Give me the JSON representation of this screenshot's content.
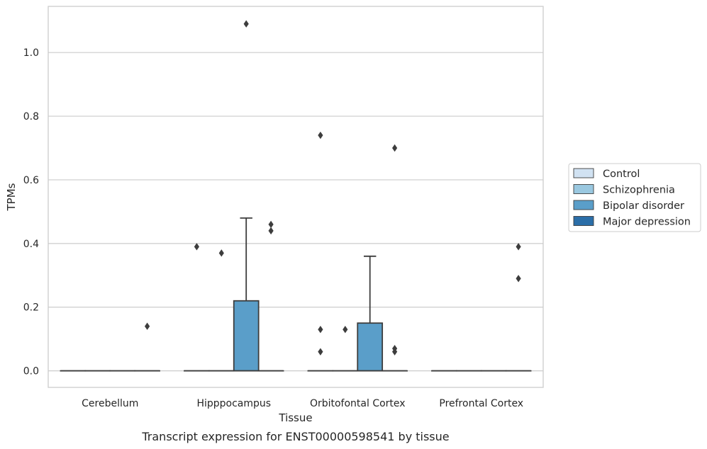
{
  "chart_data": {
    "type": "box",
    "xlabel": "Tissue",
    "ylabel": "TPMs",
    "caption": "Transcript expression for ENST00000598541 by tissue",
    "ylim": [
      -0.052,
      1.145
    ],
    "yticks": [
      "0.0",
      "0.2",
      "0.4",
      "0.6",
      "0.8",
      "1.0"
    ],
    "grid": "horizontal",
    "legend_position": "right",
    "categories": [
      "Cerebellum",
      "Hipppocampus",
      "Orbitofontal Cortex",
      "Prefrontal Cortex"
    ],
    "series": [
      {
        "name": "Control",
        "color": "#d1e2f2"
      },
      {
        "name": "Schizophrenia",
        "color": "#9ac8e0"
      },
      {
        "name": "Bipolar disorder",
        "color": "#5a9ec9"
      },
      {
        "name": "Major depression",
        "color": "#2b6ea8"
      }
    ],
    "boxes": [
      {
        "category": 0,
        "series": 0,
        "q1": 0,
        "median": 0,
        "q3": 0,
        "whisker_low": 0,
        "whisker_high": 0,
        "outliers": []
      },
      {
        "category": 0,
        "series": 1,
        "q1": 0,
        "median": 0,
        "q3": 0,
        "whisker_low": 0,
        "whisker_high": 0,
        "outliers": []
      },
      {
        "category": 0,
        "series": 2,
        "q1": 0,
        "median": 0,
        "q3": 0,
        "whisker_low": 0,
        "whisker_high": 0,
        "outliers": []
      },
      {
        "category": 0,
        "series": 3,
        "q1": 0,
        "median": 0,
        "q3": 0,
        "whisker_low": 0,
        "whisker_high": 0,
        "outliers": [
          0.14
        ]
      },
      {
        "category": 1,
        "series": 0,
        "q1": 0,
        "median": 0,
        "q3": 0,
        "whisker_low": 0,
        "whisker_high": 0,
        "outliers": [
          0.39
        ]
      },
      {
        "category": 1,
        "series": 1,
        "q1": 0,
        "median": 0,
        "q3": 0,
        "whisker_low": 0,
        "whisker_high": 0,
        "outliers": [
          0.37
        ]
      },
      {
        "category": 1,
        "series": 2,
        "q1": 0,
        "median": 0,
        "q3": 0.22,
        "whisker_low": 0,
        "whisker_high": 0.48,
        "outliers": [
          1.09
        ]
      },
      {
        "category": 1,
        "series": 3,
        "q1": 0,
        "median": 0,
        "q3": 0,
        "whisker_low": 0,
        "whisker_high": 0,
        "outliers": [
          0.46,
          0.44
        ]
      },
      {
        "category": 2,
        "series": 0,
        "q1": 0,
        "median": 0,
        "q3": 0,
        "whisker_low": 0,
        "whisker_high": 0,
        "outliers": [
          0.74,
          0.13,
          0.06
        ]
      },
      {
        "category": 2,
        "series": 1,
        "q1": 0,
        "median": 0,
        "q3": 0,
        "whisker_low": 0,
        "whisker_high": 0,
        "outliers": [
          0.13
        ]
      },
      {
        "category": 2,
        "series": 2,
        "q1": 0,
        "median": 0,
        "q3": 0.15,
        "whisker_low": 0,
        "whisker_high": 0.36,
        "outliers": []
      },
      {
        "category": 2,
        "series": 3,
        "q1": 0,
        "median": 0,
        "q3": 0,
        "whisker_low": 0,
        "whisker_high": 0,
        "outliers": [
          0.7,
          0.07,
          0.06
        ]
      },
      {
        "category": 3,
        "series": 0,
        "q1": 0,
        "median": 0,
        "q3": 0,
        "whisker_low": 0,
        "whisker_high": 0,
        "outliers": []
      },
      {
        "category": 3,
        "series": 1,
        "q1": 0,
        "median": 0,
        "q3": 0,
        "whisker_low": 0,
        "whisker_high": 0,
        "outliers": []
      },
      {
        "category": 3,
        "series": 2,
        "q1": 0,
        "median": 0,
        "q3": 0,
        "whisker_low": 0,
        "whisker_high": 0,
        "outliers": []
      },
      {
        "category": 3,
        "series": 3,
        "q1": 0,
        "median": 0,
        "q3": 0,
        "whisker_low": 0,
        "whisker_high": 0,
        "outliers": [
          0.39,
          0.29
        ]
      }
    ]
  }
}
